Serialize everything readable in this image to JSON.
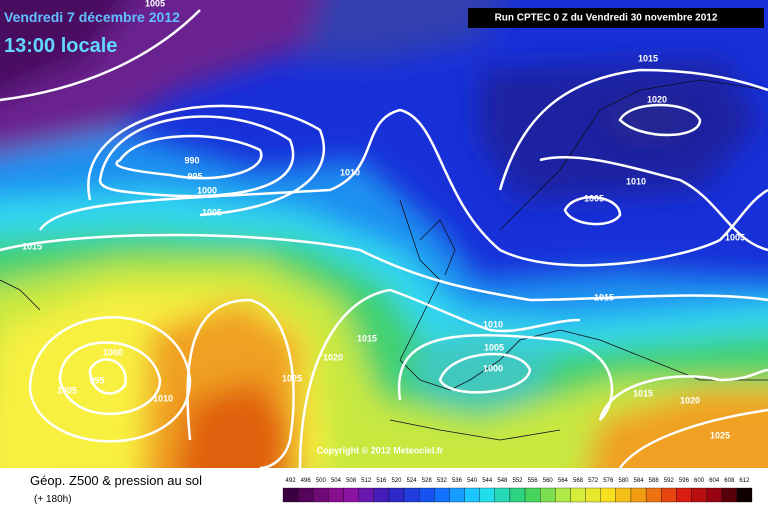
{
  "header": {
    "date": "Vendredi 7 décembre 2012",
    "time": "13:00 locale",
    "run": "Run CPTEC 0 Z du Vendredi 30 novembre 2012"
  },
  "copyright": "Copyright © 2012 Meteociel.fr",
  "contour_labels": [
    "1005",
    "990",
    "995",
    "1000",
    "1005",
    "1010",
    "1015",
    "1015",
    "1020",
    "1010",
    "1005",
    "1005",
    "1015",
    "1010",
    "1005",
    "1000",
    "1015",
    "1020",
    "1025",
    "1000",
    "995",
    "1005",
    "1010",
    "1015",
    "1020",
    "1025"
  ],
  "footer": {
    "title": "Géop. Z500 & pression au sol",
    "lead": "(+ 180h)",
    "scale": [
      492,
      496,
      500,
      504,
      508,
      512,
      516,
      520,
      524,
      528,
      532,
      536,
      540,
      544,
      548,
      552,
      556,
      560,
      564,
      568,
      572,
      576,
      580,
      584,
      588,
      592,
      596,
      600,
      604,
      608,
      612
    ]
  }
}
